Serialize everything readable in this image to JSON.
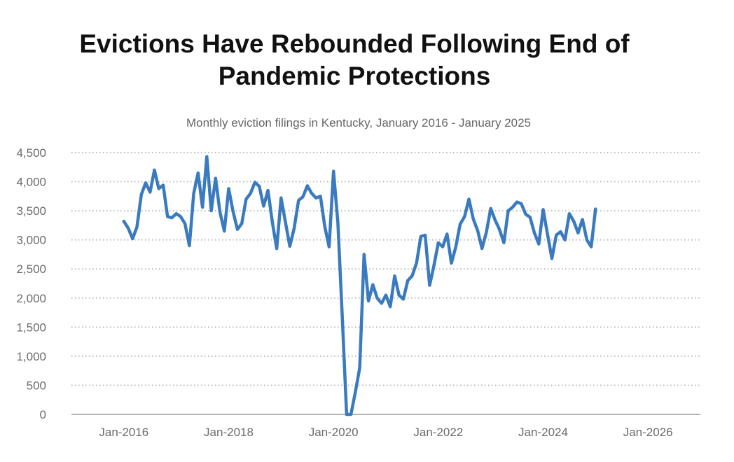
{
  "chart_data": {
    "type": "line",
    "title_line1": "Evictions Have Rebounded Following End of",
    "title_line2": "Pandemic Protections",
    "subtitle": "Monthly eviction filings in Kentucky, January 2016 - January 2025",
    "xlabel": "",
    "ylabel": "",
    "ylim": [
      0,
      4500
    ],
    "y_ticks": [
      0,
      500,
      1000,
      1500,
      2000,
      2500,
      3000,
      3500,
      4000,
      4500
    ],
    "y_tick_labels": [
      "0",
      "500",
      "1,000",
      "1,500",
      "2,000",
      "2,500",
      "3,000",
      "3,500",
      "4,000",
      "4,500"
    ],
    "x_ticks": [
      2016,
      2018,
      2020,
      2022,
      2024,
      2026
    ],
    "x_tick_labels": [
      "Jan-2016",
      "Jan-2018",
      "Jan-2020",
      "Jan-2022",
      "Jan-2024",
      "Jan-2026"
    ],
    "xlim": [
      2015,
      2027
    ],
    "grid": "horizontal-dotted",
    "line_color": "#3a7bc0",
    "series": [
      {
        "name": "Monthly eviction filings",
        "start": "2016-01",
        "values": [
          3320,
          3200,
          3020,
          3220,
          3780,
          3980,
          3820,
          4200,
          3880,
          3940,
          3400,
          3380,
          3450,
          3400,
          3280,
          2900,
          3800,
          4150,
          3560,
          4430,
          3500,
          4060,
          3480,
          3150,
          3880,
          3490,
          3180,
          3280,
          3700,
          3800,
          3990,
          3920,
          3580,
          3850,
          3300,
          2850,
          3720,
          3300,
          2890,
          3200,
          3680,
          3740,
          3930,
          3800,
          3720,
          3750,
          3230,
          2880,
          4180,
          3300,
          1700,
          0,
          0,
          380,
          800,
          2750,
          1950,
          2230,
          2000,
          1910,
          2050,
          1850,
          2380,
          2050,
          1980,
          2300,
          2380,
          2600,
          3060,
          3080,
          2220,
          2560,
          2950,
          2880,
          3100,
          2600,
          2880,
          3270,
          3400,
          3700,
          3360,
          3160,
          2850,
          3130,
          3540,
          3340,
          3180,
          2950,
          3500,
          3560,
          3650,
          3620,
          3440,
          3390,
          3120,
          2930,
          3520,
          3100,
          2680,
          3080,
          3140,
          3000,
          3450,
          3320,
          3120,
          3350,
          3000,
          2880,
          3530
        ]
      }
    ]
  }
}
